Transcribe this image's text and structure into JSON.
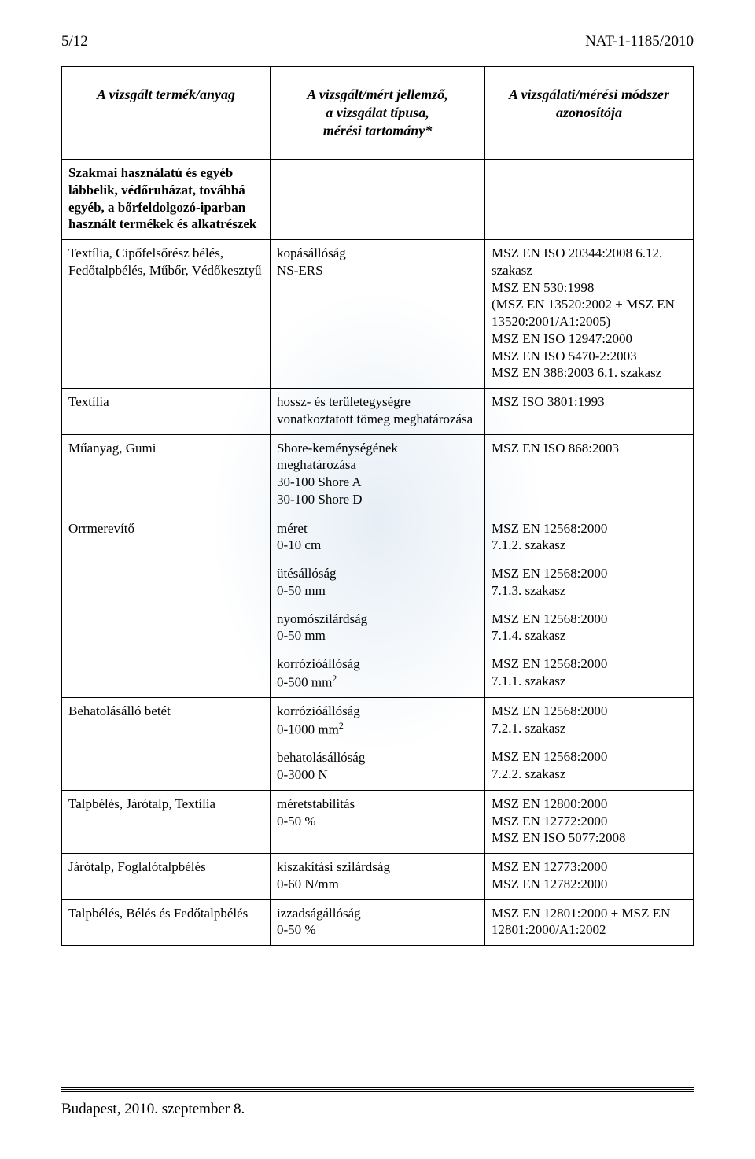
{
  "header": {
    "page_num": "5/12",
    "doc_id": "NAT-1-1185/2010"
  },
  "table_headers": {
    "col1": "A vizsgált termék/anyag",
    "col2_line1": "A vizsgált/mért jellemző,",
    "col2_line2": "a vizsgálat típusa,",
    "col2_line3": "mérési tartomány*",
    "col3_line1": "A vizsgálati/mérési módszer",
    "col3_line2": "azonosítója"
  },
  "section_head": "Szakmai használatú és egyéb lábbelik, védőruházat, továbbá egyéb, a bőrfeldolgozó-iparban használt termékek és alkatrészek",
  "rows": [
    {
      "c1": "Textília, Cipőfelsőrész bélés, Fedőtalpbélés, Műbőr, Védőkesztyű",
      "c2": [
        {
          "l1": "kopásállóság",
          "l2": "NS-ERS"
        }
      ],
      "c3": [
        "MSZ EN ISO 20344:2008 6.12. szakasz",
        "MSZ EN 530:1998",
        "(MSZ EN 13520:2002 + MSZ EN 13520:2001/A1:2005)",
        "MSZ EN ISO 12947:2000",
        "MSZ EN ISO 5470-2:2003",
        "MSZ EN 388:2003 6.1. szakasz"
      ]
    },
    {
      "c1": "Textília",
      "c2": [
        {
          "l1": "hossz- és területegységre vonatkoztatott tömeg meghatározása"
        }
      ],
      "c3": [
        "MSZ ISO 3801:1993"
      ]
    },
    {
      "c1": "Műanyag,  Gumi",
      "c2": [
        {
          "l1": "Shore-keménységének meghatározása",
          "l2": "30-100 Shore A",
          "l3": "30-100 Shore D"
        }
      ],
      "c3": [
        "MSZ EN ISO 868:2003"
      ]
    },
    {
      "c1": "Orrmerevítő",
      "c2": [
        {
          "l1": "méret",
          "l2": "0-10 cm"
        },
        {
          "l1": "ütésállóság",
          "l2": "0-50 mm"
        },
        {
          "l1": "nyomószilárdság",
          "l2": "0-50 mm"
        },
        {
          "l1": "korrózióállóság",
          "l2": "0-500 mm",
          "sup": "2"
        }
      ],
      "c3b": [
        [
          "MSZ EN 12568:2000",
          "7.1.2. szakasz"
        ],
        [
          "MSZ EN 12568:2000",
          "7.1.3. szakasz"
        ],
        [
          "MSZ EN 12568:2000",
          "7.1.4. szakasz"
        ],
        [
          "MSZ EN 12568:2000",
          "7.1.1. szakasz"
        ]
      ]
    },
    {
      "c1": "Behatolásálló betét",
      "c2": [
        {
          "l1": "korrózióállóság",
          "l2": "0-1000 mm",
          "sup": "2"
        },
        {
          "l1": "behatolásállóság",
          "l2": "0-3000 N"
        }
      ],
      "c3b": [
        [
          "MSZ EN 12568:2000",
          "7.2.1. szakasz"
        ],
        [
          "MSZ EN 12568:2000",
          "7.2.2. szakasz"
        ]
      ]
    },
    {
      "c1": "Talpbélés, Járótalp, Textília",
      "c2": [
        {
          "l1": "méretstabilitás",
          "l2": "0-50 %"
        }
      ],
      "c3": [
        "MSZ EN 12800:2000",
        "MSZ EN 12772:2000",
        "MSZ EN ISO 5077:2008"
      ]
    },
    {
      "c1": "Járótalp, Foglalótalpbélés",
      "c2": [
        {
          "l1": "kiszakítási szilárdság",
          "l2": "0-60 N/mm"
        }
      ],
      "c3": [
        "MSZ EN 12773:2000",
        "MSZ EN 12782:2000"
      ]
    },
    {
      "c1": "Talpbélés, Bélés és Fedőtalpbélés",
      "c2": [
        {
          "l1": "izzadságállóság",
          "l2": "0-50 %"
        }
      ],
      "c3": [
        "MSZ EN 12801:2000 + MSZ EN 12801:2000/A1:2002"
      ]
    }
  ],
  "footer": "Budapest, 2010. szeptember 8."
}
